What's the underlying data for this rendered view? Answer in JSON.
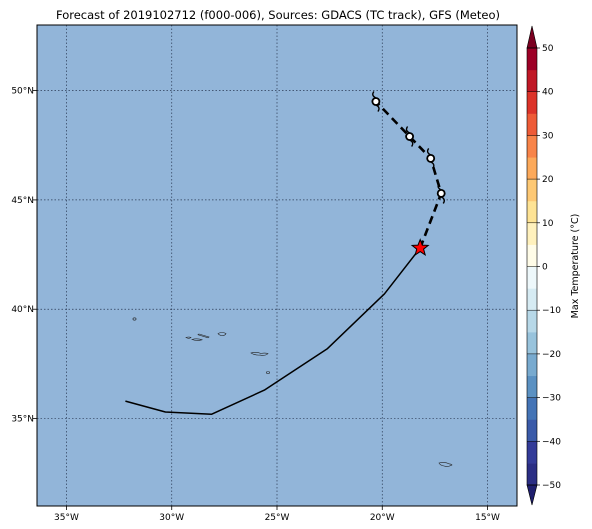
{
  "title": "Forecast of 2019102712 (f000-006), Sources: GDACS (TC track), GFS (Meteo)",
  "map": {
    "lon_range": [
      -36.4,
      -13.6
    ],
    "lat_range": [
      31.0,
      53.0
    ],
    "ocean_color": "#92b5d9",
    "gridline_color": "#2b3a55",
    "lon_ticks": [
      {
        "value": -35,
        "label": "35°W"
      },
      {
        "value": -30,
        "label": "30°W"
      },
      {
        "value": -25,
        "label": "25°W"
      },
      {
        "value": -20,
        "label": "20°W"
      },
      {
        "value": -15,
        "label": "15°W"
      }
    ],
    "lat_ticks": [
      {
        "value": 50,
        "label": "50°N"
      },
      {
        "value": 45,
        "label": "45°N"
      },
      {
        "value": 40,
        "label": "40°N"
      },
      {
        "value": 35,
        "label": "35°N"
      }
    ]
  },
  "track": {
    "past": [
      {
        "lon": -32.2,
        "lat": 35.8
      },
      {
        "lon": -30.3,
        "lat": 35.3
      },
      {
        "lon": -28.1,
        "lat": 35.2
      },
      {
        "lon": -25.6,
        "lat": 36.3
      },
      {
        "lon": -22.6,
        "lat": 38.2
      },
      {
        "lon": -19.9,
        "lat": 40.7
      },
      {
        "lon": -18.2,
        "lat": 42.8
      }
    ],
    "current": {
      "lon": -18.2,
      "lat": 42.8
    },
    "forecast": [
      {
        "lon": -18.2,
        "lat": 42.8
      },
      {
        "lon": -17.2,
        "lat": 45.3
      },
      {
        "lon": -17.7,
        "lat": 46.9
      },
      {
        "lon": -18.7,
        "lat": 47.9
      },
      {
        "lon": -20.3,
        "lat": 49.5
      }
    ],
    "storm_symbols": [
      {
        "lon": -17.2,
        "lat": 45.3
      },
      {
        "lon": -17.7,
        "lat": 46.9
      },
      {
        "lon": -18.7,
        "lat": 47.9
      },
      {
        "lon": -20.3,
        "lat": 49.5
      }
    ],
    "marker_color": "#ff0000"
  },
  "colorbar": {
    "label": "Max Temperature (°C)",
    "min": -50,
    "max": 50,
    "ticks": [
      {
        "value": 50,
        "label": "50"
      },
      {
        "value": 40,
        "label": "40"
      },
      {
        "value": 30,
        "label": "30"
      },
      {
        "value": 20,
        "label": "20"
      },
      {
        "value": 10,
        "label": "10"
      },
      {
        "value": 0,
        "label": "0"
      },
      {
        "value": -10,
        "label": "−10"
      },
      {
        "value": -20,
        "label": "−20"
      },
      {
        "value": -30,
        "label": "−30"
      },
      {
        "value": -40,
        "label": "−40"
      },
      {
        "value": -50,
        "label": "−50"
      }
    ],
    "bins": [
      {
        "from": -50,
        "to": -45,
        "color": "#2b2e84"
      },
      {
        "from": -45,
        "to": -40,
        "color": "#333b98"
      },
      {
        "from": -40,
        "to": -35,
        "color": "#3a5aa8"
      },
      {
        "from": -35,
        "to": -30,
        "color": "#4474b6"
      },
      {
        "from": -30,
        "to": -25,
        "color": "#5b91c2"
      },
      {
        "from": -25,
        "to": -20,
        "color": "#78aacf"
      },
      {
        "from": -20,
        "to": -15,
        "color": "#98c3dc"
      },
      {
        "from": -15,
        "to": -10,
        "color": "#b7d8e8"
      },
      {
        "from": -10,
        "to": -5,
        "color": "#d6ebf3"
      },
      {
        "from": -5,
        "to": 0,
        "color": "#eef8fb"
      },
      {
        "from": 0,
        "to": 5,
        "color": "#fffce8"
      },
      {
        "from": 5,
        "to": 10,
        "color": "#fff1bd"
      },
      {
        "from": 10,
        "to": 15,
        "color": "#fee394"
      },
      {
        "from": 15,
        "to": 20,
        "color": "#fdc874"
      },
      {
        "from": 20,
        "to": 25,
        "color": "#fca95a"
      },
      {
        "from": 25,
        "to": 30,
        "color": "#f88449"
      },
      {
        "from": 30,
        "to": 35,
        "color": "#ee5b37"
      },
      {
        "from": 35,
        "to": 40,
        "color": "#dc3329"
      },
      {
        "from": 40,
        "to": 45,
        "color": "#c01826"
      },
      {
        "from": 45,
        "to": 50,
        "color": "#9c0026"
      }
    ],
    "under_color": "#1f1f6e",
    "over_color": "#7a0020"
  }
}
